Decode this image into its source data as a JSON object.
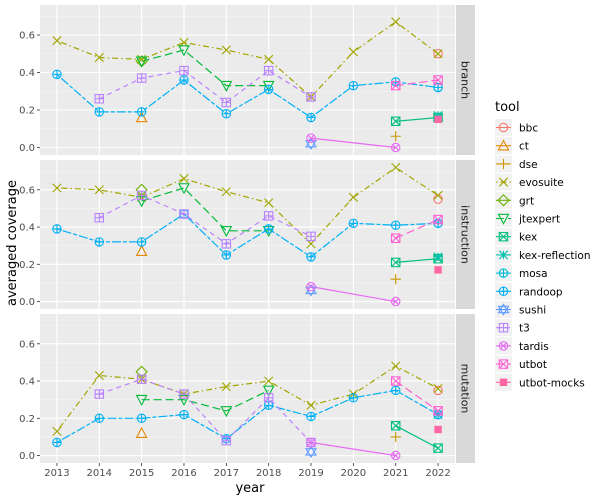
{
  "chart_data": {
    "type": "line",
    "xlabel": "year",
    "ylabel": "averaged coverage",
    "x_ticks": [
      2013,
      2014,
      2015,
      2016,
      2017,
      2018,
      2019,
      2020,
      2021,
      2022
    ],
    "xlim": [
      2012.6,
      2022.4
    ],
    "ylim": [
      -0.04,
      0.76
    ],
    "y_ticks": [
      "0.0",
      "0.2",
      "0.4",
      "0.6"
    ],
    "grid": true,
    "legend": {
      "title": "tool",
      "placement": "right"
    },
    "facets": [
      "branch",
      "instruction",
      "mutation"
    ],
    "series": [
      {
        "name": "bbc",
        "color": "#F8766D",
        "shape": "circle-open",
        "linetype": "solid",
        "values": {
          "branch": [
            [
              2022,
              0.5
            ]
          ],
          "instruction": [
            [
              2022,
              0.55
            ]
          ],
          "mutation": [
            [
              2022,
              0.35
            ]
          ]
        }
      },
      {
        "name": "ct",
        "color": "#E58700",
        "shape": "triangle-open",
        "linetype": "solid",
        "values": {
          "branch": [
            [
              2015,
              0.16
            ]
          ],
          "instruction": [
            [
              2015,
              0.27
            ]
          ],
          "mutation": [
            [
              2015,
              0.12
            ]
          ]
        }
      },
      {
        "name": "dse",
        "color": "#C99800",
        "shape": "plus",
        "linetype": "solid",
        "values": {
          "branch": [
            [
              2021,
              0.06
            ]
          ],
          "instruction": [
            [
              2021,
              0.12
            ]
          ],
          "mutation": [
            [
              2021,
              0.1
            ]
          ]
        }
      },
      {
        "name": "evosuite",
        "color": "#A3A500",
        "shape": "x",
        "linetype": "dotdash",
        "values": {
          "branch": [
            [
              2013,
              0.57
            ],
            [
              2014,
              0.48
            ],
            [
              2015,
              0.47
            ],
            [
              2016,
              0.56
            ],
            [
              2017,
              0.52
            ],
            [
              2018,
              0.47
            ],
            [
              2019,
              0.27
            ],
            [
              2020,
              0.51
            ],
            [
              2021,
              0.67
            ],
            [
              2022,
              0.5
            ]
          ],
          "instruction": [
            [
              2013,
              0.61
            ],
            [
              2014,
              0.6
            ],
            [
              2015,
              0.56
            ],
            [
              2016,
              0.66
            ],
            [
              2017,
              0.59
            ],
            [
              2018,
              0.53
            ],
            [
              2019,
              0.31
            ],
            [
              2020,
              0.56
            ],
            [
              2021,
              0.72
            ],
            [
              2022,
              0.57
            ]
          ],
          "mutation": [
            [
              2013,
              0.13
            ],
            [
              2014,
              0.43
            ],
            [
              2015,
              0.41
            ],
            [
              2016,
              0.33
            ],
            [
              2017,
              0.37
            ],
            [
              2018,
              0.4
            ],
            [
              2019,
              0.27
            ],
            [
              2020,
              0.33
            ],
            [
              2021,
              0.48
            ],
            [
              2022,
              0.36
            ]
          ]
        }
      },
      {
        "name": "grt",
        "color": "#6BB100",
        "shape": "diamond-open",
        "linetype": "solid",
        "values": {
          "branch": [
            [
              2015,
              0.46
            ]
          ],
          "instruction": [
            [
              2015,
              0.6
            ]
          ],
          "mutation": [
            [
              2015,
              0.45
            ]
          ]
        }
      },
      {
        "name": "jtexpert",
        "color": "#00BA38",
        "shape": "triangle-down-open",
        "linetype": "longdash",
        "values": {
          "branch": [
            [
              2015,
              0.46
            ],
            [
              2016,
              0.52
            ],
            [
              2017,
              0.33
            ],
            [
              2018,
              0.33
            ]
          ],
          "instruction": [
            [
              2015,
              0.54
            ],
            [
              2016,
              0.61
            ],
            [
              2017,
              0.38
            ],
            [
              2018,
              0.38
            ]
          ],
          "mutation": [
            [
              2015,
              0.3
            ],
            [
              2016,
              0.3
            ],
            [
              2017,
              0.24
            ],
            [
              2018,
              0.35
            ]
          ]
        }
      },
      {
        "name": "kex",
        "color": "#00BF7D",
        "shape": "square-cross",
        "linetype": "solid",
        "values": {
          "branch": [
            [
              2021,
              0.14
            ],
            [
              2022,
              0.16
            ]
          ],
          "instruction": [
            [
              2021,
              0.21
            ],
            [
              2022,
              0.23
            ]
          ],
          "mutation": [
            [
              2021,
              0.16
            ],
            [
              2022,
              0.04
            ]
          ]
        }
      },
      {
        "name": "kex-reflection",
        "color": "#00C0AF",
        "shape": "asterisk",
        "linetype": "solid",
        "values": {
          "branch": [
            [
              2022,
              0.17
            ]
          ],
          "instruction": [
            [
              2022,
              0.24
            ]
          ],
          "mutation": [
            [
              2022,
              0.22
            ]
          ]
        }
      },
      {
        "name": "mosa",
        "color": "#00BCD8",
        "shape": "circle-plus",
        "linetype": "solid",
        "values": {
          "branch": [
            [
              2022,
              0.32
            ]
          ],
          "instruction": [
            [
              2022,
              0.42
            ]
          ],
          "mutation": [
            [
              2022,
              0.22
            ]
          ]
        }
      },
      {
        "name": "randoop",
        "color": "#00B0F6",
        "shape": "circle-plus",
        "linetype": "twodash",
        "values": {
          "branch": [
            [
              2013,
              0.39
            ],
            [
              2014,
              0.19
            ],
            [
              2015,
              0.19
            ],
            [
              2016,
              0.36
            ],
            [
              2017,
              0.18
            ],
            [
              2018,
              0.31
            ],
            [
              2019,
              0.16
            ],
            [
              2020,
              0.33
            ],
            [
              2021,
              0.35
            ],
            [
              2022,
              0.32
            ]
          ],
          "instruction": [
            [
              2013,
              0.39
            ],
            [
              2014,
              0.32
            ],
            [
              2015,
              0.32
            ],
            [
              2016,
              0.47
            ],
            [
              2017,
              0.25
            ],
            [
              2018,
              0.39
            ],
            [
              2019,
              0.24
            ],
            [
              2020,
              0.42
            ],
            [
              2021,
              0.41
            ],
            [
              2022,
              0.42
            ]
          ],
          "mutation": [
            [
              2013,
              0.07
            ],
            [
              2014,
              0.2
            ],
            [
              2015,
              0.2
            ],
            [
              2016,
              0.22
            ],
            [
              2017,
              0.09
            ],
            [
              2018,
              0.27
            ],
            [
              2019,
              0.21
            ],
            [
              2020,
              0.31
            ],
            [
              2021,
              0.35
            ],
            [
              2022,
              0.22
            ]
          ]
        }
      },
      {
        "name": "sushi",
        "color": "#619CFF",
        "shape": "star-triangle",
        "linetype": "solid",
        "values": {
          "branch": [
            [
              2019,
              0.02
            ]
          ],
          "instruction": [
            [
              2019,
              0.06
            ]
          ],
          "mutation": [
            [
              2019,
              0.02
            ]
          ]
        }
      },
      {
        "name": "t3",
        "color": "#B983FF",
        "shape": "square-plus",
        "linetype": "dashed",
        "values": {
          "branch": [
            [
              2014,
              0.26
            ],
            [
              2015,
              0.37
            ],
            [
              2016,
              0.41
            ],
            [
              2017,
              0.24
            ],
            [
              2018,
              0.41
            ],
            [
              2019,
              0.27
            ]
          ],
          "instruction": [
            [
              2014,
              0.45
            ],
            [
              2015,
              0.57
            ],
            [
              2016,
              0.47
            ],
            [
              2017,
              0.31
            ],
            [
              2018,
              0.46
            ],
            [
              2019,
              0.35
            ]
          ],
          "mutation": [
            [
              2014,
              0.33
            ],
            [
              2015,
              0.41
            ],
            [
              2016,
              0.33
            ],
            [
              2017,
              0.08
            ],
            [
              2018,
              0.31
            ],
            [
              2019,
              0.07
            ]
          ]
        }
      },
      {
        "name": "tardis",
        "color": "#E76BF3",
        "shape": "circle-x",
        "linetype": "solid",
        "values": {
          "branch": [
            [
              2019,
              0.05
            ],
            [
              2021,
              0.0
            ]
          ],
          "instruction": [
            [
              2019,
              0.08
            ],
            [
              2021,
              0.0
            ]
          ],
          "mutation": [
            [
              2019,
              0.07
            ],
            [
              2021,
              0.0
            ]
          ]
        }
      },
      {
        "name": "utbot",
        "color": "#FD61D1",
        "shape": "square-x",
        "linetype": "longdash",
        "values": {
          "branch": [
            [
              2021,
              0.33
            ],
            [
              2022,
              0.36
            ]
          ],
          "instruction": [
            [
              2021,
              0.34
            ],
            [
              2022,
              0.44
            ]
          ],
          "mutation": [
            [
              2021,
              0.4
            ],
            [
              2022,
              0.24
            ]
          ]
        }
      },
      {
        "name": "utbot-mocks",
        "color": "#FF67A4",
        "shape": "square-filled",
        "linetype": "solid",
        "values": {
          "branch": [
            [
              2022,
              0.15
            ]
          ],
          "instruction": [
            [
              2022,
              0.17
            ]
          ],
          "mutation": [
            [
              2022,
              0.14
            ]
          ]
        }
      }
    ]
  }
}
